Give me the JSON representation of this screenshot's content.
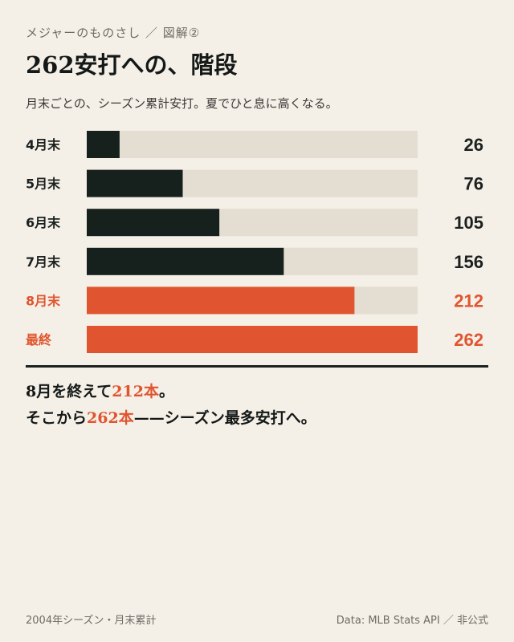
{
  "header": {
    "kicker": "メジャーのものさし ／ 図解②",
    "title": "262安打への、階段",
    "subtitle": "月末ごとの、シーズン累計安打。夏でひと息に高くなる。"
  },
  "chart_data": {
    "type": "bar",
    "orientation": "horizontal",
    "categories": [
      "4月末",
      "5月末",
      "6月末",
      "7月末",
      "8月末",
      "最終"
    ],
    "values": [
      26,
      76,
      105,
      156,
      212,
      262
    ],
    "value_labels": [
      "26",
      "76",
      "105",
      "156",
      "212",
      "262"
    ],
    "xlim": [
      0,
      262
    ],
    "highlighted": [
      "8月末",
      "最終"
    ],
    "grid": false,
    "legend": "none"
  },
  "colors": {
    "bar_default": "#16211d",
    "bar_highlight": "#e0552f",
    "track": "#e4ddd1",
    "label_default": "#1c211f",
    "label_highlight": "#e0552f"
  },
  "note": {
    "line1_a": "8月を終えて",
    "line1_b": "212本",
    "line1_c": "。",
    "line2_a": "そこから",
    "line2_b": "262本",
    "line2_c": "——シーズン最多安打へ。"
  },
  "footer": {
    "left": "2004年シーズン・月末累計",
    "right": "Data: MLB Stats API ／ 非公式"
  }
}
